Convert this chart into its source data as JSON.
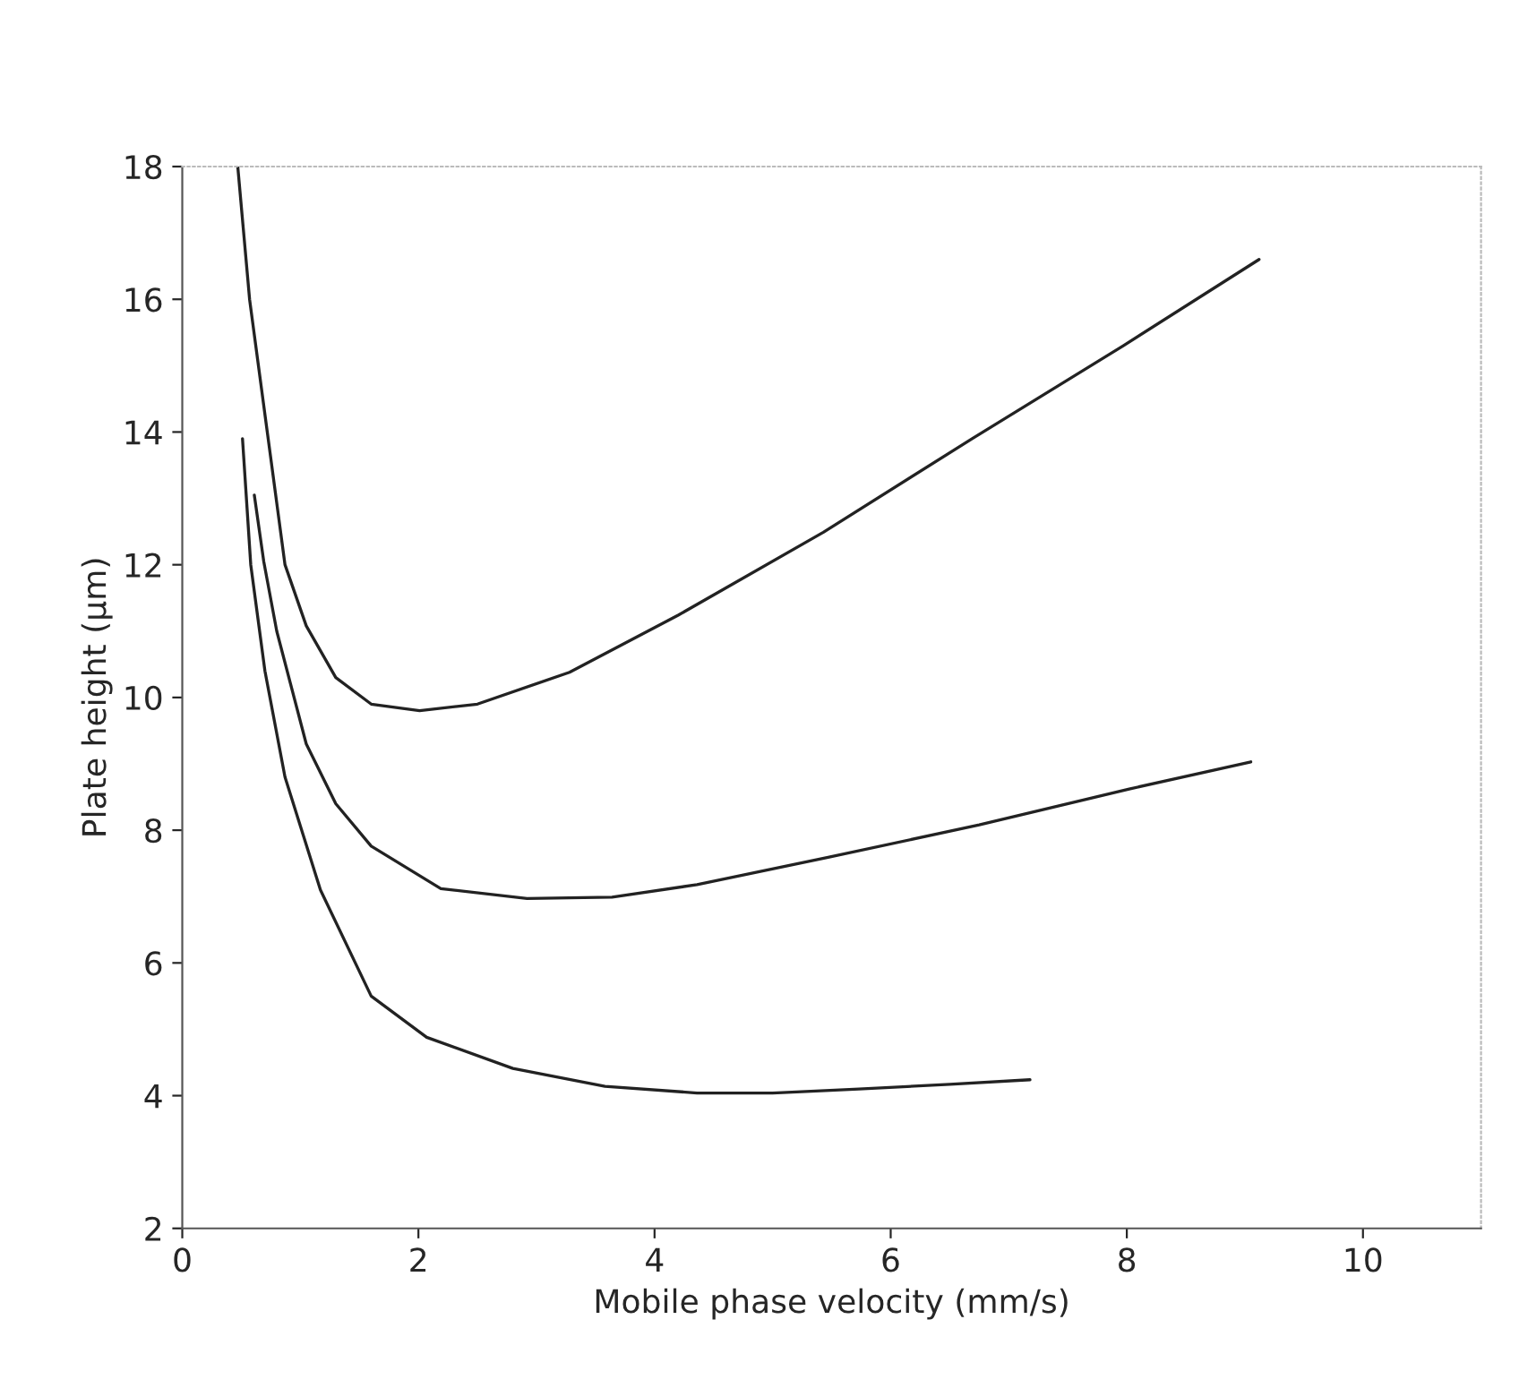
{
  "chart_data": {
    "type": "line",
    "xlabel": "Mobile phase velocity (mm/s)",
    "ylabel": "Plate height (µm)",
    "xlim": [
      0,
      11
    ],
    "xticks": [
      0,
      2,
      4,
      6,
      8,
      10
    ],
    "ylim": [
      2,
      18
    ],
    "yticks": [
      2,
      4,
      6,
      8,
      10,
      12,
      14,
      16,
      18
    ],
    "grid": false,
    "marker": "none",
    "line_style": "solid",
    "series": [
      {
        "color": "#222222",
        "x": [
          0.47,
          0.57,
          0.72,
          0.87,
          1.05,
          1.3,
          1.6,
          2.01,
          2.5,
          3.28,
          4.2,
          5.43,
          6.69,
          7.97,
          9.12
        ],
        "values": [
          18,
          16.0,
          14.0,
          12.0,
          11.08,
          10.3,
          9.9,
          9.8,
          9.9,
          10.38,
          11.24,
          12.49,
          13.9,
          15.3,
          16.6
        ]
      },
      {
        "color": "#222222",
        "x": [
          0.61,
          0.69,
          0.8,
          1.05,
          1.3,
          1.6,
          2.19,
          2.92,
          3.64,
          4.36,
          5.47,
          6.75,
          8.02,
          9.05
        ],
        "values": [
          13.05,
          12.05,
          11.0,
          9.3,
          8.4,
          7.76,
          7.12,
          6.97,
          6.99,
          7.18,
          7.59,
          8.08,
          8.62,
          9.03
        ]
      },
      {
        "color": "#222222",
        "x": [
          0.51,
          0.58,
          0.7,
          0.87,
          1.17,
          1.6,
          2.07,
          2.8,
          3.58,
          4.36,
          5.0,
          5.73,
          6.5,
          7.18
        ],
        "values": [
          13.9,
          12.0,
          10.4,
          8.8,
          7.1,
          5.5,
          4.88,
          4.41,
          4.14,
          4.04,
          4.04,
          4.1,
          4.17,
          4.24
        ]
      }
    ]
  }
}
